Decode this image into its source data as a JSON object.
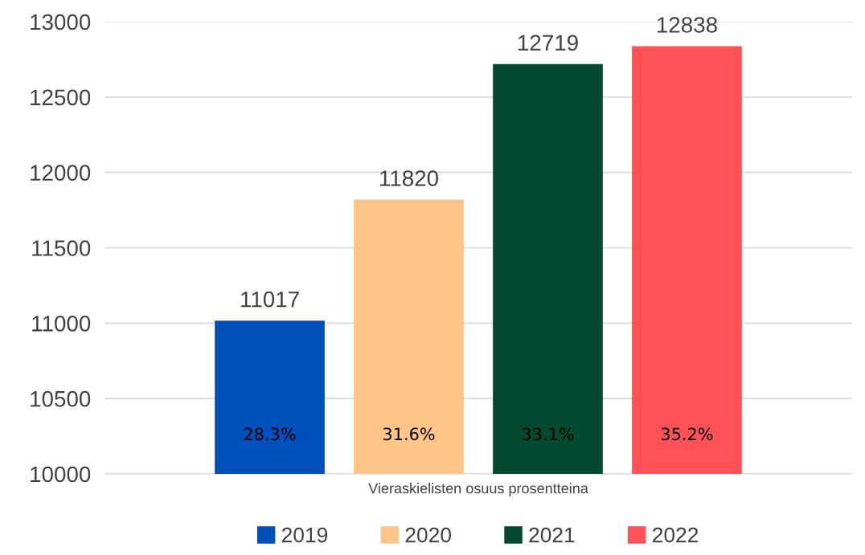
{
  "chart_data": {
    "type": "bar",
    "categories": [
      "Vieraskielisten osuus prosentteina"
    ],
    "series": [
      {
        "name": "2019",
        "color": "#0050bb",
        "values": [
          11017
        ]
      },
      {
        "name": "2020",
        "color": "#ffc488",
        "values": [
          11820
        ]
      },
      {
        "name": "2021",
        "color": "#034a30",
        "values": [
          12719
        ]
      },
      {
        "name": "2022",
        "color": "#ff5257",
        "values": [
          12838
        ]
      }
    ],
    "ylim": [
      10000,
      13000
    ],
    "yticks": [
      10000,
      10500,
      11000,
      11500,
      12000,
      12500,
      13000
    ],
    "grid": "y",
    "legend": "bottom",
    "data_labels": true,
    "annotations": [
      "28.3%",
      "31.6%",
      "33.1%",
      "35.2%"
    ]
  }
}
